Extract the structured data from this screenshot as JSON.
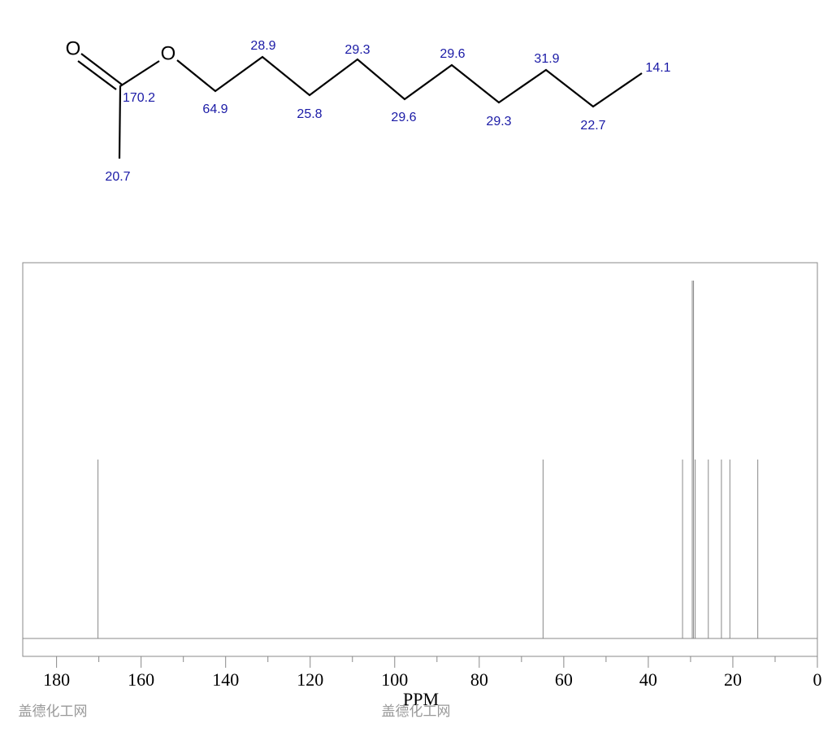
{
  "molecule": {
    "atoms": [
      "O",
      "O"
    ],
    "shift_labels": [
      "170.2",
      "20.7",
      "64.9",
      "28.9",
      "25.8",
      "29.3",
      "29.6",
      "29.6",
      "29.3",
      "31.9",
      "22.7",
      "14.1"
    ]
  },
  "chart_data": {
    "type": "stem",
    "x_label": "PPM",
    "x": [
      170.2,
      64.9,
      31.9,
      29.6,
      29.3,
      28.9,
      25.8,
      22.7,
      20.7,
      14.1
    ],
    "values": [
      1,
      1,
      1,
      2,
      2,
      1,
      1,
      1,
      1,
      1
    ],
    "color": "#888888",
    "xlim": [
      188,
      0
    ],
    "ylim": [
      -0.1,
      2.1
    ],
    "xticks": [
      180,
      160,
      140,
      120,
      100,
      80,
      60,
      40,
      20,
      0
    ],
    "minor_xticks": [
      170,
      150,
      130,
      110,
      90,
      70,
      50,
      30,
      10
    ]
  },
  "watermarks": [
    "盖德化工网",
    "盖德化工网"
  ]
}
